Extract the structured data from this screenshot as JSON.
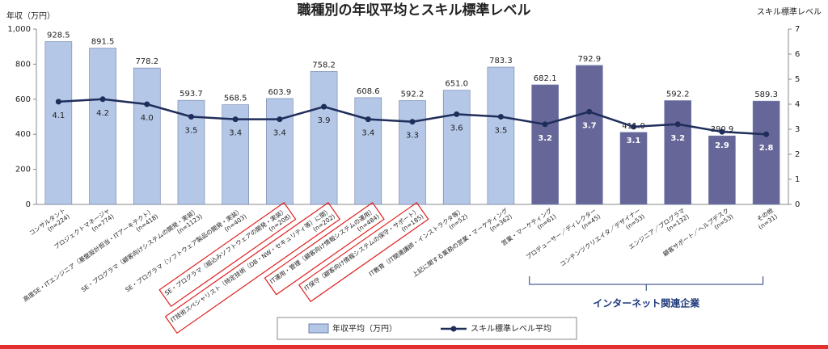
{
  "chart_data": {
    "type": "bar-line",
    "title": "職種別の年収平均とスキル標準レベル",
    "y_label": "年収（万円）",
    "y2_label": "スキル標準レベル",
    "categories": [
      "コンサルタント",
      "プロジェクトマネージャ",
      "高度SE・ITエンジニア（基盤設計担当・ITアーキテクト）",
      "SE・プログラマ（顧客向けシステムの開発・実装）",
      "SE・プログラマ（ソフトウェア製品の開発・実装）",
      "SE・プログラマ（組込みソフトウェアの開発・実装）",
      "IT技術スペシャリスト（特定技術（DB・NW・セキュリティ等）に関）",
      "IT運用・管理（顧客向け情報システムの運用）",
      "IT保守（顧客向け情報システムの保守・サポート）",
      "IT教育（IT関連講師・インストラクタ等）",
      "上記に関する業務の営業・マーケティング",
      "営業・マーケティング",
      "プロデューサー／ディレクター",
      "コンテンツクリエイタ／デザイナー",
      "エンジニア／プログラマ",
      "顧客サポート／ヘルプデスク",
      "その他"
    ],
    "sample_sizes": [
      "(n=224)",
      "(n=774)",
      "(n=418)",
      "(n=1123)",
      "(n=403)",
      "(n=208)",
      "(n=202)",
      "(n=484)",
      "(n=185)",
      "(n=52)",
      "(n=362)",
      "(n=61)",
      "(n=45)",
      "(n=53)",
      "(n=132)",
      "(n=53)",
      "(n=31)"
    ],
    "highlighted": [
      false,
      false,
      false,
      false,
      false,
      true,
      true,
      true,
      true,
      false,
      false,
      false,
      false,
      false,
      false,
      false,
      false
    ],
    "series": [
      {
        "name": "年収平均（万円）",
        "type": "bar",
        "color": "#b4c7e7",
        "colors": [
          "#b4c7e7",
          "#b4c7e7",
          "#b4c7e7",
          "#b4c7e7",
          "#b4c7e7",
          "#b4c7e7",
          "#b4c7e7",
          "#b4c7e7",
          "#b4c7e7",
          "#b4c7e7",
          "#b4c7e7",
          "#666699",
          "#666699",
          "#666699",
          "#666699",
          "#666699",
          "#666699"
        ],
        "values": [
          928.5,
          891.5,
          778.2,
          593.7,
          568.5,
          603.9,
          758.2,
          608.6,
          592.2,
          651.0,
          783.3,
          682.1,
          792.9,
          411.0,
          592.2,
          390.9,
          589.3
        ],
        "value_labels": [
          "928.5",
          "891.5",
          "778.2",
          "593.7",
          "568.5",
          "603.9",
          "758.2",
          "608.6",
          "592.2",
          "651.0",
          "783.3",
          "682.1",
          "792.9",
          "411.0",
          "592.2",
          "390.9",
          "589.3"
        ]
      },
      {
        "name": "スキル標準レベル平均",
        "type": "line",
        "axis": "y2",
        "color": "#1f2d5a",
        "values": [
          4.1,
          4.2,
          4.0,
          3.5,
          3.4,
          3.4,
          3.9,
          3.4,
          3.3,
          3.6,
          3.5,
          3.2,
          3.7,
          3.1,
          3.2,
          2.9,
          2.8
        ],
        "value_labels": [
          "4.1",
          "4.2",
          "4.0",
          "3.5",
          "3.4",
          "3.4",
          "3.9",
          "3.4",
          "3.3",
          "3.6",
          "3.5",
          "3.2",
          "3.7",
          "3.1",
          "3.2",
          "2.9",
          "2.8"
        ]
      }
    ],
    "group_label": "インターネット関連企業",
    "ylim": [
      0,
      1000
    ],
    "yticks": [
      0,
      200,
      400,
      600,
      800,
      {
        "value": 1000,
        "label": "1,000"
      }
    ],
    "y2lim": [
      0,
      7
    ],
    "y2ticks": [
      0,
      1,
      2,
      3,
      4,
      5,
      6,
      7
    ],
    "grid": false
  }
}
